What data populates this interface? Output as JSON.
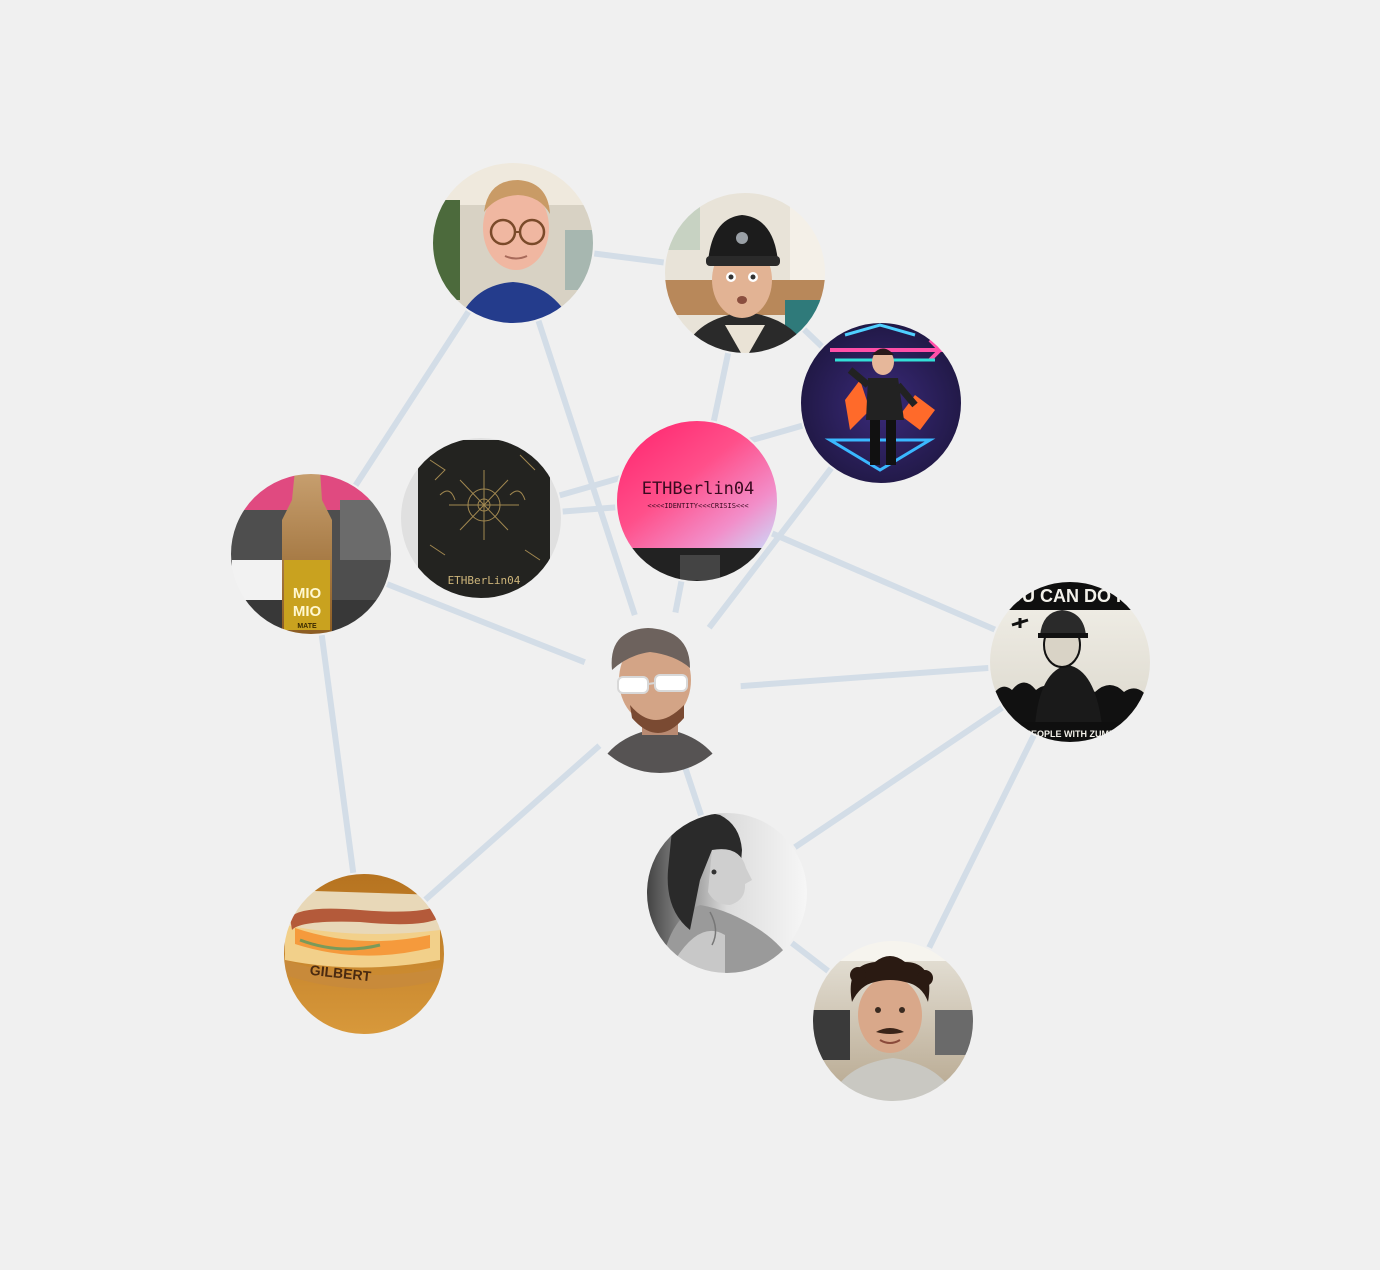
{
  "graph": {
    "edge_color": "#d3dde7",
    "background": "#f0f0f0",
    "nodes": [
      {
        "id": "glasses-man"
      },
      {
        "id": "cap-man"
      },
      {
        "id": "neon-dancer"
      },
      {
        "id": "mio-mio-bottle"
      },
      {
        "id": "engraved-panel"
      },
      {
        "id": "ethberlin-screen"
      },
      {
        "id": "sunglasses-avatar"
      },
      {
        "id": "you-can-do-it-poster"
      },
      {
        "id": "woman-profile"
      },
      {
        "id": "sausage-bread"
      },
      {
        "id": "curly-hair-man"
      }
    ],
    "edges": [
      [
        "glasses-man",
        "cap-man"
      ],
      [
        "glasses-man",
        "mio-mio-bottle"
      ],
      [
        "glasses-man",
        "sunglasses-avatar"
      ],
      [
        "cap-man",
        "ethberlin-screen"
      ],
      [
        "cap-man",
        "neon-dancer"
      ],
      [
        "neon-dancer",
        "engraved-panel"
      ],
      [
        "neon-dancer",
        "sunglasses-avatar"
      ],
      [
        "mio-mio-bottle",
        "sunglasses-avatar"
      ],
      [
        "mio-mio-bottle",
        "sausage-bread"
      ],
      [
        "engraved-panel",
        "ethberlin-screen"
      ],
      [
        "ethberlin-screen",
        "sunglasses-avatar"
      ],
      [
        "ethberlin-screen",
        "you-can-do-it-poster"
      ],
      [
        "sunglasses-avatar",
        "you-can-do-it-poster"
      ],
      [
        "sunglasses-avatar",
        "sausage-bread"
      ],
      [
        "sunglasses-avatar",
        "woman-profile"
      ],
      [
        "woman-profile",
        "you-can-do-it-poster"
      ],
      [
        "woman-profile",
        "curly-hair-man"
      ],
      [
        "curly-hair-man",
        "you-can-do-it-poster"
      ]
    ]
  },
  "texts": {
    "mio_line1": "MIO",
    "mio_line2": "MIO",
    "mio_line3": "MATE",
    "ethberlin_title": "ETHBerlin04",
    "ethberlin_subtitle": "<<<<IDENTITY<<<CRISIS<<<",
    "panel_text": "ETHBerLin04",
    "poster_top": "OU CAN DO IT",
    "poster_bottom": "T PEOPLE WITH ZUME",
    "sausage_label": "GILBERT"
  }
}
